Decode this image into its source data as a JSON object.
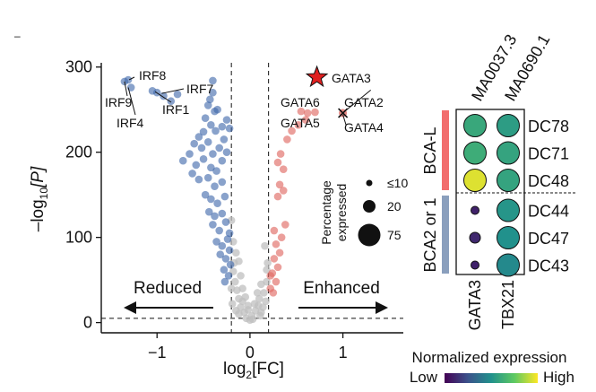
{
  "corner_mark": "–",
  "volcano": {
    "chart_data": {
      "type": "scatter",
      "title": "",
      "xlabel_main": "log",
      "xlabel_sub": "2",
      "xlabel_rest": "[FC]",
      "ylabel_prefix": "–log",
      "ylabel_sub": "10",
      "ylabel_rest": "[P]",
      "xlim": [
        -1.6,
        1.65
      ],
      "ylim": [
        -12,
        305
      ],
      "xticks": [
        {
          "value": -1,
          "label": "−1"
        },
        {
          "value": 0,
          "label": "0"
        },
        {
          "value": 1,
          "label": "1"
        }
      ],
      "yticks": [
        {
          "value": 0,
          "label": "0"
        },
        {
          "value": 100,
          "label": "100"
        },
        {
          "value": 200,
          "label": "200"
        },
        {
          "value": 300,
          "label": "300"
        }
      ],
      "fc_thresholds": [
        -0.2,
        0.2
      ],
      "p_threshold": 5,
      "colors": {
        "reduced": "#3b64a8",
        "enhanced": "#e06c66",
        "ns": "#bfbfbf",
        "star": "#e02020"
      },
      "direction_labels": {
        "reduced": "Reduced",
        "enhanced": "Enhanced"
      },
      "reduced_points": [
        [
          -1.35,
          283
        ],
        [
          -1.31,
          285
        ],
        [
          -1.28,
          276
        ],
        [
          -1.05,
          272
        ],
        [
          -1.0,
          270
        ],
        [
          -0.93,
          266
        ],
        [
          -0.85,
          260
        ],
        [
          -0.78,
          268
        ],
        [
          -0.4,
          284
        ],
        [
          -0.4,
          270
        ],
        [
          -0.43,
          262
        ],
        [
          -0.45,
          255
        ],
        [
          -0.38,
          248
        ],
        [
          -0.48,
          240
        ],
        [
          -0.35,
          250
        ],
        [
          -0.42,
          232
        ],
        [
          -0.5,
          224
        ],
        [
          -0.55,
          218
        ],
        [
          -0.37,
          225
        ],
        [
          -0.3,
          230
        ],
        [
          -0.25,
          238
        ],
        [
          -0.22,
          228
        ],
        [
          -0.6,
          210
        ],
        [
          -0.52,
          205
        ],
        [
          -0.45,
          212
        ],
        [
          -0.4,
          198
        ],
        [
          -0.33,
          205
        ],
        [
          -0.28,
          215
        ],
        [
          -0.65,
          198
        ],
        [
          -0.72,
          190
        ],
        [
          -0.58,
          185
        ],
        [
          -0.5,
          192
        ],
        [
          -0.42,
          182
        ],
        [
          -0.36,
          178
        ],
        [
          -0.3,
          190
        ],
        [
          -0.25,
          200
        ],
        [
          -0.62,
          175
        ],
        [
          -0.55,
          168
        ],
        [
          -0.45,
          170
        ],
        [
          -0.38,
          160
        ],
        [
          -0.3,
          165
        ],
        [
          -0.48,
          150
        ],
        [
          -0.42,
          145
        ],
        [
          -0.35,
          140
        ],
        [
          -0.27,
          148
        ],
        [
          -0.44,
          130
        ],
        [
          -0.38,
          125
        ],
        [
          -0.3,
          128
        ],
        [
          -0.4,
          115
        ],
        [
          -0.33,
          108
        ],
        [
          -0.26,
          118
        ],
        [
          -0.22,
          105
        ],
        [
          -0.36,
          95
        ],
        [
          -0.3,
          90
        ],
        [
          -0.24,
          98
        ],
        [
          -0.32,
          80
        ],
        [
          -0.26,
          75
        ],
        [
          -0.22,
          85
        ],
        [
          -0.28,
          62
        ],
        [
          -0.23,
          55
        ],
        [
          -0.21,
          68
        ],
        [
          -0.27,
          48
        ]
      ],
      "enhanced_points": [
        [
          0.55,
          248
        ],
        [
          0.62,
          246
        ],
        [
          0.7,
          247
        ],
        [
          0.6,
          238
        ],
        [
          0.52,
          232
        ],
        [
          0.45,
          225
        ],
        [
          0.4,
          215
        ],
        [
          0.33,
          198
        ],
        [
          0.3,
          188
        ],
        [
          0.36,
          180
        ],
        [
          0.32,
          162
        ],
        [
          0.3,
          148
        ],
        [
          0.38,
          115
        ],
        [
          0.34,
          100
        ],
        [
          0.28,
          92
        ],
        [
          0.32,
          82
        ],
        [
          0.26,
          75
        ],
        [
          0.3,
          65
        ],
        [
          0.24,
          58
        ],
        [
          0.28,
          48
        ],
        [
          0.22,
          40
        ],
        [
          0.25,
          35
        ],
        [
          0.22,
          55
        ],
        [
          0.26,
          108
        ],
        [
          0.36,
          155
        ]
      ],
      "ns_points": [
        [
          -0.2,
          120
        ],
        [
          -0.18,
          95
        ],
        [
          -0.15,
          82
        ],
        [
          -0.12,
          72
        ],
        [
          -0.18,
          60
        ],
        [
          -0.1,
          55
        ],
        [
          -0.16,
          48
        ],
        [
          -0.08,
          40
        ],
        [
          -0.14,
          38
        ],
        [
          -0.05,
          30
        ],
        [
          -0.12,
          28
        ],
        [
          -0.02,
          20
        ],
        [
          0.05,
          22
        ],
        [
          0.1,
          28
        ],
        [
          0.15,
          35
        ],
        [
          0.18,
          48
        ],
        [
          0.12,
          45
        ],
        [
          0.18,
          62
        ],
        [
          0.08,
          35
        ],
        [
          -0.06,
          12
        ],
        [
          0.02,
          8
        ],
        [
          0.06,
          14
        ],
        [
          -0.04,
          5
        ],
        [
          0.0,
          3
        ],
        [
          0.03,
          4
        ],
        [
          -0.1,
          18
        ],
        [
          0.14,
          18
        ],
        [
          -0.19,
          22
        ],
        [
          0.17,
          25
        ],
        [
          -0.15,
          14
        ],
        [
          0.12,
          12
        ],
        [
          -0.2,
          40
        ],
        [
          0.19,
          70
        ],
        [
          -0.08,
          25
        ],
        [
          0.09,
          20
        ],
        [
          -0.12,
          10
        ],
        [
          0.11,
          8
        ],
        [
          -0.17,
          70
        ],
        [
          0.16,
          90
        ],
        [
          -0.02,
          15
        ]
      ],
      "gene_labels": [
        {
          "name": "IRF8",
          "x": -1.3,
          "y": 285
        },
        {
          "name": "IRF9",
          "x": -1.35,
          "y": 283
        },
        {
          "name": "IRF4",
          "x": -1.31,
          "y": 276
        },
        {
          "name": "IRF7",
          "x": -0.95,
          "y": 269
        },
        {
          "name": "IRF1",
          "x": -1.02,
          "y": 271
        },
        {
          "name": "GATA3",
          "x": 0.72,
          "y": 288
        },
        {
          "name": "GATA2",
          "x": 1.3,
          "y": 273
        },
        {
          "name": "GATA6",
          "x": 0.62,
          "y": 246
        },
        {
          "name": "GATA5",
          "x": 0.72,
          "y": 247
        },
        {
          "name": "GATA4",
          "x": 1.0,
          "y": 244
        }
      ],
      "gata4_cross": {
        "x": 1.0,
        "y": 246
      },
      "star_point": {
        "x": 0.72,
        "y": 288
      }
    }
  },
  "size_legend": {
    "title_line1": "Percentage",
    "title_line2": "expressed",
    "entries": [
      {
        "label": "≤10",
        "value": 10
      },
      {
        "label": "20",
        "value": 20
      },
      {
        "label": "75",
        "value": 75
      }
    ]
  },
  "dotplot": {
    "chart_data": {
      "type": "dotplot",
      "top_labels": [
        "MA0037.3",
        "MA0690.1"
      ],
      "bottom_labels": [
        "GATA3",
        "TBX21"
      ],
      "rows": [
        "DC78",
        "DC71",
        "DC48",
        "DC44",
        "DC47",
        "DC43"
      ],
      "groups": [
        {
          "label": "BCA-L",
          "rows": [
            0,
            1,
            2
          ],
          "color": "#f26d6d"
        },
        {
          "label": "BCA2 or 1",
          "rows": [
            3,
            4,
            5
          ],
          "color": "#8a9fbd"
        }
      ],
      "expression": [
        [
          0.6,
          0.55
        ],
        [
          0.62,
          0.58
        ],
        [
          0.95,
          0.58
        ],
        [
          0.1,
          0.52
        ],
        [
          0.12,
          0.5
        ],
        [
          0.1,
          0.47
        ]
      ],
      "percent": [
        [
          75,
          50
        ],
        [
          72,
          52
        ],
        [
          80,
          52
        ],
        [
          12,
          52
        ],
        [
          20,
          52
        ],
        [
          10,
          52
        ]
      ]
    }
  },
  "colorbar": {
    "title": "Normalized expression",
    "low_label": "Low",
    "high_label": "High",
    "stops": [
      "#440154",
      "#3b528b",
      "#21918c",
      "#5ec962",
      "#fde725"
    ]
  }
}
